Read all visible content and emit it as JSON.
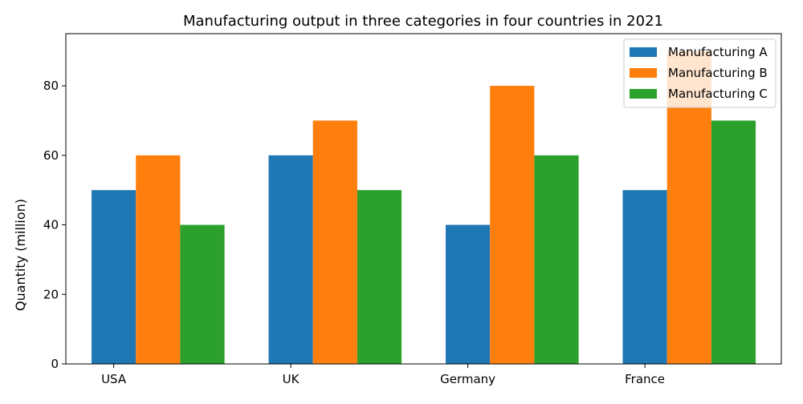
{
  "chart_data": {
    "type": "bar",
    "title": "Manufacturing output in three categories in four countries in 2021",
    "xlabel": "",
    "ylabel": "Quantity (million)",
    "categories": [
      "USA",
      "UK",
      "Germany",
      "France"
    ],
    "ylim": [
      0,
      95
    ],
    "yticks": [
      0,
      20,
      40,
      60,
      80
    ],
    "grid": false,
    "legend_position": "top-right",
    "series": [
      {
        "name": "Manufacturing A",
        "values": [
          50,
          60,
          40,
          50
        ],
        "color": "#1f77b4"
      },
      {
        "name": "Manufacturing B",
        "values": [
          60,
          70,
          80,
          90
        ],
        "color": "#ff7f0e"
      },
      {
        "name": "Manufacturing C",
        "values": [
          40,
          50,
          60,
          70
        ],
        "color": "#2ca02c"
      }
    ]
  }
}
